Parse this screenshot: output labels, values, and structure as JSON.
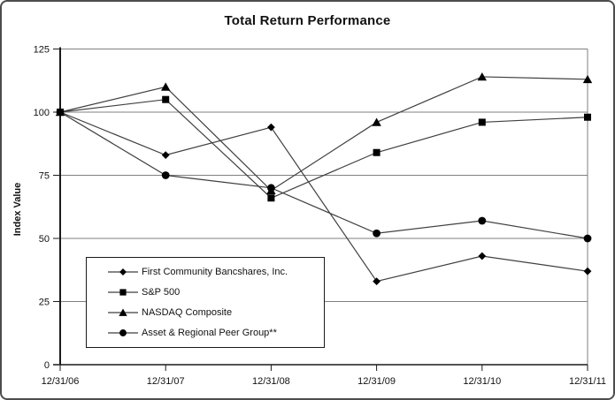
{
  "chart_data": {
    "type": "line",
    "title": "Total Return Performance",
    "ylabel": "Index Value",
    "xlabel": "",
    "categories": [
      "12/31/06",
      "12/31/07",
      "12/31/08",
      "12/31/09",
      "12/31/10",
      "12/31/11"
    ],
    "y_ticks": [
      0,
      25,
      50,
      75,
      100,
      125
    ],
    "ylim": [
      0,
      125
    ],
    "grid": "horizontal gridlines at each y tick",
    "legend_position": "inside bottom-left",
    "series": [
      {
        "name": "First Community Bancshares, Inc.",
        "marker": "diamond",
        "values": [
          100,
          83,
          94,
          33,
          43,
          37
        ]
      },
      {
        "name": "S&P 500",
        "marker": "square",
        "values": [
          100,
          105,
          66,
          84,
          96,
          98
        ]
      },
      {
        "name": "NASDAQ Composite",
        "marker": "triangle",
        "values": [
          100,
          110,
          69,
          96,
          114,
          113
        ]
      },
      {
        "name": "Asset & Regional Peer Group**",
        "marker": "circle",
        "values": [
          100,
          75,
          70,
          52,
          57,
          50
        ]
      }
    ],
    "colors": {
      "series_line": "#3f3f3f",
      "gridline": "#7f7f7f",
      "axis": "#1a1a1a",
      "marker": "#000000",
      "text": "#111111",
      "background": "#ffffff",
      "frame_border": "#4d4d4d",
      "legend_border": "#1a1a1a"
    }
  }
}
